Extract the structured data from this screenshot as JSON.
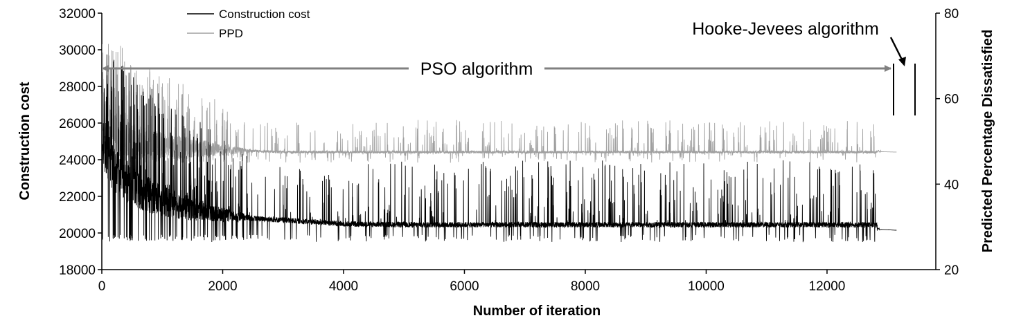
{
  "chart_data": {
    "type": "line",
    "xlabel": "Number of iteration",
    "ylabel": "Construction cost",
    "y2label": "Predicted Percentage Dissatisfied",
    "xlim": [
      0,
      13800
    ],
    "ylim": [
      18000,
      32000
    ],
    "y2lim": [
      20,
      80
    ],
    "x_ticks": [
      "0",
      "2000",
      "4000",
      "6000",
      "8000",
      "10000",
      "12000"
    ],
    "y_ticks": [
      "18000",
      "20000",
      "22000",
      "24000",
      "26000",
      "28000",
      "30000",
      "32000"
    ],
    "y2_ticks": [
      "20",
      "40",
      "60",
      "80"
    ],
    "legend_position": "top-left",
    "annotations": {
      "pso": "PSO algorithm",
      "hooke_jeeves": "Hooke-Jevees algorithm"
    },
    "series": [
      {
        "name": "Construction cost",
        "axis": "left",
        "color": "#000000",
        "description_points": {
          "x": [
            0,
            200,
            500,
            1000,
            1500,
            2000,
            2500,
            3000,
            4000,
            5000,
            6000,
            8000,
            10000,
            12000,
            12800,
            12900,
            13150
          ],
          "y": [
            25000,
            23500,
            22500,
            21800,
            21300,
            21000,
            20800,
            20700,
            20500,
            20450,
            20450,
            20450,
            20450,
            20450,
            20450,
            20200,
            20150
          ]
        },
        "range_bands": {
          "early_min": 19500,
          "early_max": 30000,
          "late_min": 19500,
          "late_max": 24000
        }
      },
      {
        "name": "PPD",
        "axis": "right",
        "color": "#a0a0a0",
        "description_points": {
          "x": [
            0,
            200,
            500,
            1000,
            1500,
            2000,
            3000,
            4000,
            6000,
            8000,
            10000,
            12000,
            12800,
            12900,
            13150
          ],
          "y": [
            56,
            52,
            50,
            49,
            48.5,
            48,
            47.5,
            47.5,
            47.5,
            47.5,
            47.5,
            47.5,
            47.5,
            47.6,
            47.5
          ]
        },
        "range_bands": {
          "early_min": 45,
          "early_max": 75,
          "late_min": 45,
          "late_max": 55
        }
      }
    ],
    "switch_iteration": 12830,
    "end_iteration": 13150
  }
}
